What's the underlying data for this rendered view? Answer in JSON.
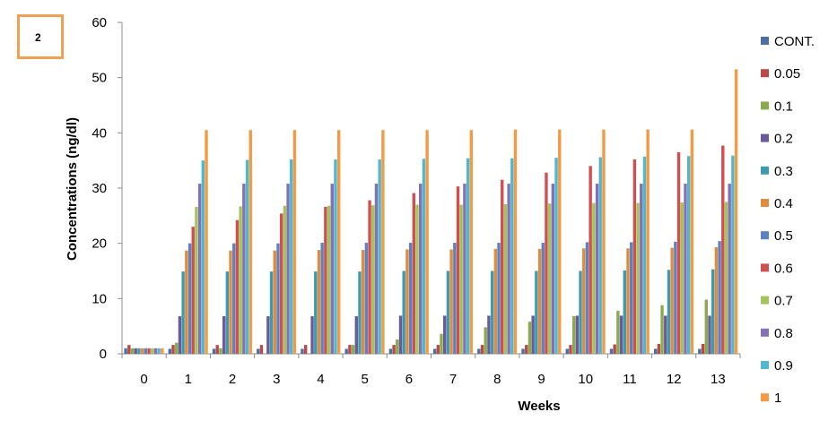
{
  "panel_label": "2",
  "chart_data": {
    "type": "bar",
    "title": "",
    "xlabel": "Weeks",
    "ylabel": "Concentrations (ng/dl)",
    "ylim": [
      0,
      60
    ],
    "yticks": [
      0,
      10,
      20,
      30,
      40,
      50,
      60
    ],
    "grid": false,
    "legend_position": "right",
    "categories": [
      "0",
      "1",
      "2",
      "3",
      "4",
      "5",
      "6",
      "7",
      "8",
      "9",
      "10",
      "11",
      "12",
      "13"
    ],
    "series": [
      {
        "name": "CONT.",
        "color": "#4a6fa5",
        "values": [
          1.0,
          0.9,
          0.9,
          0.9,
          0.9,
          0.9,
          0.9,
          0.9,
          0.9,
          0.9,
          0.9,
          0.9,
          0.9,
          0.9
        ]
      },
      {
        "name": "0.05",
        "color": "#b94a48",
        "values": [
          1.6,
          1.6,
          1.6,
          1.6,
          1.6,
          1.6,
          1.6,
          1.6,
          1.6,
          1.6,
          1.6,
          1.7,
          1.8,
          1.8
        ]
      },
      {
        "name": "0.1",
        "color": "#8aab4c",
        "values": [
          1.0,
          2.0,
          1.0,
          0.0,
          0.0,
          1.6,
          2.6,
          3.6,
          4.8,
          5.8,
          6.8,
          7.8,
          8.8,
          9.8
        ]
      },
      {
        "name": "0.2",
        "color": "#6a5a9a",
        "values": [
          1.0,
          6.8,
          6.8,
          6.8,
          6.8,
          6.8,
          6.9,
          6.9,
          6.9,
          6.9,
          6.9,
          6.9,
          6.9,
          6.9
        ]
      },
      {
        "name": "0.3",
        "color": "#3e9aae",
        "values": [
          1.0,
          14.9,
          14.9,
          14.9,
          14.9,
          14.9,
          15.0,
          15.0,
          15.0,
          15.0,
          15.0,
          15.1,
          15.2,
          15.3
        ]
      },
      {
        "name": "0.4",
        "color": "#e08c3e",
        "values": [
          1.0,
          18.7,
          18.7,
          18.7,
          18.8,
          18.8,
          18.9,
          18.9,
          19.0,
          19.0,
          19.1,
          19.1,
          19.2,
          19.3
        ]
      },
      {
        "name": "0.5",
        "color": "#5b82c2",
        "values": [
          1.0,
          20.0,
          20.0,
          20.0,
          20.1,
          20.1,
          20.1,
          20.1,
          20.1,
          20.1,
          20.2,
          20.2,
          20.3,
          20.4
        ]
      },
      {
        "name": "0.6",
        "color": "#cf504e",
        "values": [
          1.0,
          23.0,
          24.2,
          25.4,
          26.6,
          27.8,
          29.1,
          30.3,
          31.5,
          32.8,
          34.0,
          35.2,
          36.5,
          37.7
        ]
      },
      {
        "name": "0.7",
        "color": "#a4c45a",
        "values": [
          1.0,
          26.6,
          26.7,
          26.8,
          26.8,
          26.9,
          27.0,
          27.0,
          27.1,
          27.2,
          27.3,
          27.3,
          27.4,
          27.5
        ]
      },
      {
        "name": "0.8",
        "color": "#8470b4",
        "values": [
          1.0,
          30.8,
          30.8,
          30.8,
          30.8,
          30.8,
          30.8,
          30.8,
          30.8,
          30.8,
          30.8,
          30.8,
          30.8,
          30.8
        ]
      },
      {
        "name": "0.9",
        "color": "#4fb8cf",
        "values": [
          1.0,
          35.0,
          35.1,
          35.2,
          35.2,
          35.2,
          35.3,
          35.4,
          35.4,
          35.5,
          35.6,
          35.7,
          35.8,
          35.9
        ]
      },
      {
        "name": "1",
        "color": "#f39a44",
        "values": [
          1.0,
          40.5,
          40.5,
          40.5,
          40.5,
          40.5,
          40.5,
          40.5,
          40.6,
          40.6,
          40.6,
          40.6,
          40.6,
          51.5
        ]
      }
    ]
  }
}
